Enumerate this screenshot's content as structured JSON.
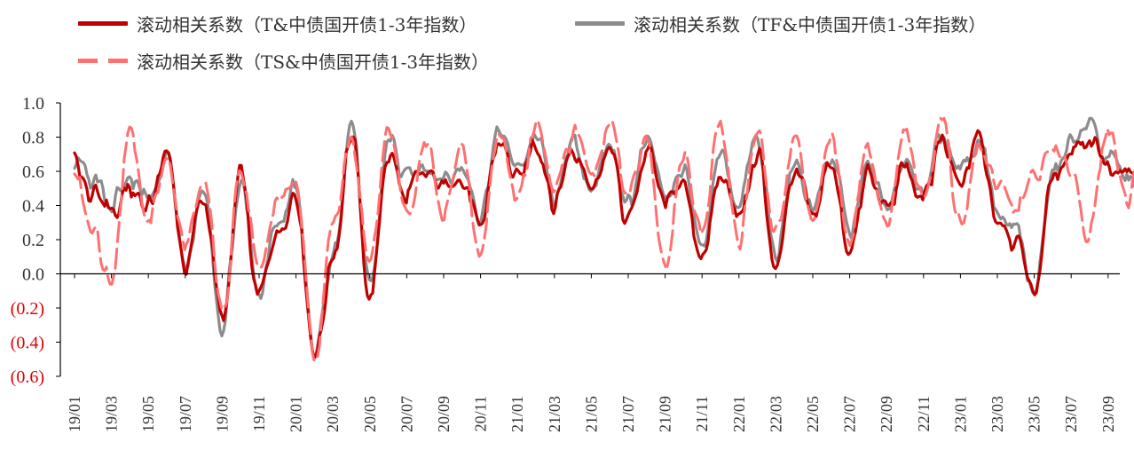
{
  "chart_data": {
    "type": "line",
    "title": "",
    "xlabel": "",
    "ylabel": "",
    "ylim": [
      -0.6,
      1.0
    ],
    "yticks": [
      1.0,
      0.8,
      0.6,
      0.4,
      0.2,
      0.0,
      -0.2,
      -0.4,
      -0.6
    ],
    "ytick_labels": [
      "1.0",
      "0.8",
      "0.6",
      "0.4",
      "0.2",
      "0.0",
      "(0.2)",
      "(0.4)",
      "(0.6)"
    ],
    "x_ticks": [
      "19/01",
      "19/03",
      "19/05",
      "19/07",
      "19/09",
      "19/11",
      "20/01",
      "20/03",
      "20/05",
      "20/07",
      "20/09",
      "20/11",
      "21/01",
      "21/03",
      "21/05",
      "21/07",
      "21/09",
      "21/11",
      "22/01",
      "22/03",
      "22/05",
      "22/07",
      "22/09",
      "22/11",
      "23/01",
      "23/03",
      "23/05",
      "23/07",
      "23/09"
    ],
    "grid": false,
    "legend_position": "top",
    "series": [
      {
        "name": "滚动相关系数（T&中债国开债1-3年指数）",
        "color": "#C00000",
        "style": "solid",
        "points": [
          [
            "19/01",
            0.65
          ],
          [
            "19/02",
            0.45
          ],
          [
            "19/03",
            0.35
          ],
          [
            "19/04",
            0.48
          ],
          [
            "19/05",
            0.4
          ],
          [
            "19/06",
            0.72
          ],
          [
            "19/07",
            0.05
          ],
          [
            "19/08",
            0.45
          ],
          [
            "19/09",
            -0.28
          ],
          [
            "19/10",
            0.58
          ],
          [
            "19/11",
            -0.15
          ],
          [
            "19/12",
            0.25
          ],
          [
            "20/01",
            0.45
          ],
          [
            "20/02",
            -0.48
          ],
          [
            "20/03",
            0.05
          ],
          [
            "20/04",
            0.82
          ],
          [
            "20/05",
            -0.15
          ],
          [
            "20/06",
            0.72
          ],
          [
            "20/07",
            0.45
          ],
          [
            "20/08",
            0.62
          ],
          [
            "20/09",
            0.5
          ],
          [
            "20/10",
            0.55
          ],
          [
            "20/11",
            0.3
          ],
          [
            "20/12",
            0.75
          ],
          [
            "21/01",
            0.55
          ],
          [
            "21/02",
            0.78
          ],
          [
            "21/03",
            0.4
          ],
          [
            "21/04",
            0.72
          ],
          [
            "21/05",
            0.5
          ],
          [
            "21/06",
            0.7
          ],
          [
            "21/07",
            0.3
          ],
          [
            "21/08",
            0.72
          ],
          [
            "21/09",
            0.4
          ],
          [
            "21/10",
            0.55
          ],
          [
            "21/11",
            0.08
          ],
          [
            "21/12",
            0.62
          ],
          [
            "22/01",
            0.35
          ],
          [
            "22/02",
            0.72
          ],
          [
            "22/03",
            0.05
          ],
          [
            "22/04",
            0.62
          ],
          [
            "22/05",
            0.35
          ],
          [
            "22/06",
            0.65
          ],
          [
            "22/07",
            0.15
          ],
          [
            "22/08",
            0.6
          ],
          [
            "22/09",
            0.35
          ],
          [
            "22/10",
            0.62
          ],
          [
            "22/11",
            0.45
          ],
          [
            "22/12",
            0.75
          ],
          [
            "23/01",
            0.55
          ],
          [
            "23/02",
            0.8
          ],
          [
            "23/03",
            0.3
          ],
          [
            "23/04",
            0.2
          ],
          [
            "23/05",
            -0.15
          ],
          [
            "23/06",
            0.55
          ],
          [
            "23/07",
            0.7
          ],
          [
            "23/08",
            0.8
          ],
          [
            "23/09",
            0.6
          ],
          [
            "23/10",
            0.65
          ],
          [
            "23/11",
            0.5
          ],
          [
            "23/12",
            0.65
          ]
        ]
      },
      {
        "name": "滚动相关系数（TF&中债国开债1-3年指数）",
        "color": "#8C8C8C",
        "style": "solid",
        "points": [
          [
            "19/01",
            0.62
          ],
          [
            "19/02",
            0.55
          ],
          [
            "19/03",
            0.4
          ],
          [
            "19/04",
            0.52
          ],
          [
            "19/05",
            0.45
          ],
          [
            "19/06",
            0.7
          ],
          [
            "19/07",
            0.1
          ],
          [
            "19/08",
            0.5
          ],
          [
            "19/09",
            -0.3
          ],
          [
            "19/10",
            0.55
          ],
          [
            "19/11",
            -0.1
          ],
          [
            "19/12",
            0.3
          ],
          [
            "20/01",
            0.5
          ],
          [
            "20/02",
            -0.45
          ],
          [
            "20/03",
            0.1
          ],
          [
            "20/04",
            0.85
          ],
          [
            "20/05",
            -0.1
          ],
          [
            "20/06",
            0.8
          ],
          [
            "20/07",
            0.55
          ],
          [
            "20/08",
            0.65
          ],
          [
            "20/09",
            0.55
          ],
          [
            "20/10",
            0.6
          ],
          [
            "20/11",
            0.35
          ],
          [
            "20/12",
            0.8
          ],
          [
            "21/01",
            0.6
          ],
          [
            "21/02",
            0.8
          ],
          [
            "21/03",
            0.45
          ],
          [
            "21/04",
            0.75
          ],
          [
            "21/05",
            0.55
          ],
          [
            "21/06",
            0.75
          ],
          [
            "21/07",
            0.4
          ],
          [
            "21/08",
            0.75
          ],
          [
            "21/09",
            0.45
          ],
          [
            "21/10",
            0.6
          ],
          [
            "21/11",
            0.15
          ],
          [
            "21/12",
            0.7
          ],
          [
            "22/01",
            0.4
          ],
          [
            "22/02",
            0.78
          ],
          [
            "22/03",
            0.1
          ],
          [
            "22/04",
            0.68
          ],
          [
            "22/05",
            0.4
          ],
          [
            "22/06",
            0.7
          ],
          [
            "22/07",
            0.25
          ],
          [
            "22/08",
            0.65
          ],
          [
            "22/09",
            0.4
          ],
          [
            "22/10",
            0.68
          ],
          [
            "22/11",
            0.5
          ],
          [
            "22/12",
            0.82
          ],
          [
            "23/01",
            0.6
          ],
          [
            "23/02",
            0.78
          ],
          [
            "23/03",
            0.35
          ],
          [
            "23/04",
            0.25
          ],
          [
            "23/05",
            -0.1
          ],
          [
            "23/06",
            0.6
          ],
          [
            "23/07",
            0.75
          ],
          [
            "23/08",
            0.88
          ],
          [
            "23/09",
            0.65
          ],
          [
            "23/10",
            0.6
          ],
          [
            "23/11",
            0.55
          ],
          [
            "23/12",
            0.7
          ]
        ]
      },
      {
        "name": "滚动相关系数（TS&中债国开债1-3年指数）",
        "color": "#FF7070",
        "style": "dashed",
        "points": [
          [
            "19/01",
            0.6
          ],
          [
            "19/02",
            0.25
          ],
          [
            "19/03",
            -0.08
          ],
          [
            "19/04",
            0.82
          ],
          [
            "19/05",
            0.3
          ],
          [
            "19/06",
            0.68
          ],
          [
            "19/07",
            0.15
          ],
          [
            "19/08",
            0.55
          ],
          [
            "19/09",
            -0.25
          ],
          [
            "19/10",
            0.6
          ],
          [
            "19/11",
            0.05
          ],
          [
            "19/12",
            0.45
          ],
          [
            "20/01",
            0.55
          ],
          [
            "20/02",
            -0.5
          ],
          [
            "20/03",
            0.3
          ],
          [
            "20/04",
            0.78
          ],
          [
            "20/05",
            0.1
          ],
          [
            "20/06",
            0.88
          ],
          [
            "20/07",
            0.35
          ],
          [
            "20/08",
            0.75
          ],
          [
            "20/09",
            0.35
          ],
          [
            "20/10",
            0.72
          ],
          [
            "20/11",
            0.1
          ],
          [
            "20/12",
            0.85
          ],
          [
            "21/01",
            0.45
          ],
          [
            "21/02",
            0.85
          ],
          [
            "21/03",
            0.5
          ],
          [
            "21/04",
            0.8
          ],
          [
            "21/05",
            0.6
          ],
          [
            "21/06",
            0.85
          ],
          [
            "21/07",
            0.45
          ],
          [
            "21/08",
            0.8
          ],
          [
            "21/09",
            0.05
          ],
          [
            "21/10",
            0.65
          ],
          [
            "21/11",
            0.25
          ],
          [
            "21/12",
            0.88
          ],
          [
            "22/01",
            0.2
          ],
          [
            "22/02",
            0.82
          ],
          [
            "22/03",
            0.25
          ],
          [
            "22/04",
            0.8
          ],
          [
            "22/05",
            0.3
          ],
          [
            "22/06",
            0.82
          ],
          [
            "22/07",
            0.2
          ],
          [
            "22/08",
            0.75
          ],
          [
            "22/09",
            0.25
          ],
          [
            "22/10",
            0.8
          ],
          [
            "22/11",
            0.4
          ],
          [
            "22/12",
            0.9
          ],
          [
            "23/01",
            0.3
          ],
          [
            "23/02",
            0.72
          ],
          [
            "23/03",
            0.55
          ],
          [
            "23/04",
            0.4
          ],
          [
            "23/05",
            0.55
          ],
          [
            "23/06",
            0.72
          ],
          [
            "23/07",
            0.6
          ],
          [
            "23/08",
            0.22
          ],
          [
            "23/09",
            0.85
          ],
          [
            "23/10",
            0.45
          ],
          [
            "23/11",
            0.7
          ],
          [
            "23/12",
            0.62
          ]
        ]
      }
    ]
  }
}
